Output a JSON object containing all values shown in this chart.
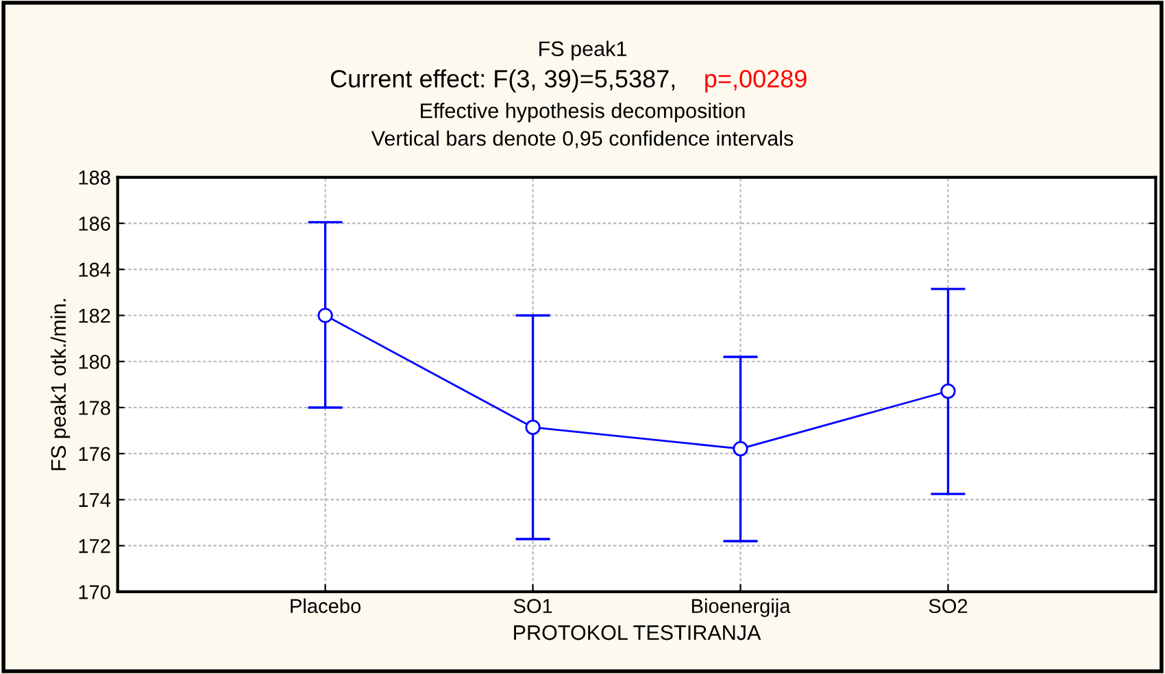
{
  "chart_data": {
    "type": "line",
    "title": "FS peak1",
    "subtitle": "Current effect: F(3, 39)=5,5387,",
    "annotations": [
      "p=,00289",
      "Effective hypothesis decomposition",
      "Vertical bars denote 0,95 confidence intervals"
    ],
    "xlabel": "PROTOKOL TESTIRANJA",
    "ylabel": "FS peak1 otk./min.",
    "categories": [
      "Placebo",
      "SO1",
      "Bioenergija",
      "SO2"
    ],
    "series": [
      {
        "color": "#0000ff",
        "values": [
          182.0,
          177.14,
          176.21,
          178.71
        ],
        "errors": [
          [
            178.0,
            186.05
          ],
          [
            172.29,
            182.0
          ],
          [
            172.2,
            180.2
          ],
          [
            174.25,
            183.15
          ]
        ]
      }
    ],
    "ylim": [
      170,
      188
    ],
    "yticks": [
      170,
      172,
      174,
      176,
      178,
      180,
      182,
      184,
      186,
      188
    ],
    "grid": true,
    "marker": "circle",
    "line_style": "solid"
  }
}
